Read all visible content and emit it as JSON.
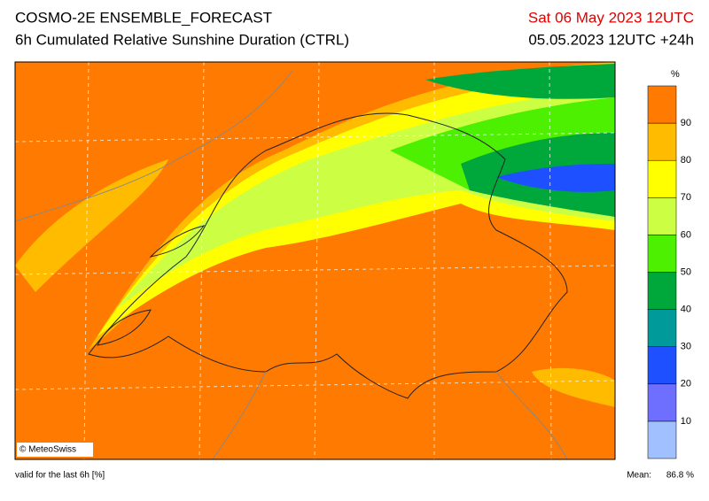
{
  "header": {
    "title": "COSMO-2E ENSEMBLE_FORECAST",
    "subtitle": "6h Cumulated Relative Sunshine Duration (CTRL)",
    "valid_date": "Sat 06 May 2023 12UTC",
    "run": "05.05.2023 12UTC +24h"
  },
  "legend": {
    "unit": "%",
    "ticks": [
      10,
      20,
      30,
      40,
      50,
      60,
      70,
      80,
      90
    ],
    "colors": [
      "#a0c0ff",
      "#6e6eff",
      "#1e50ff",
      "#009a9a",
      "#00a83c",
      "#4cf000",
      "#ccff44",
      "#ffff00",
      "#ffbb00",
      "#ff7a00"
    ]
  },
  "map": {
    "copyright": "© MeteoSwiss"
  },
  "footer": {
    "note": "valid for the last 6h [%]",
    "mean_label": "Mean:",
    "mean_value": "86.8 %"
  }
}
